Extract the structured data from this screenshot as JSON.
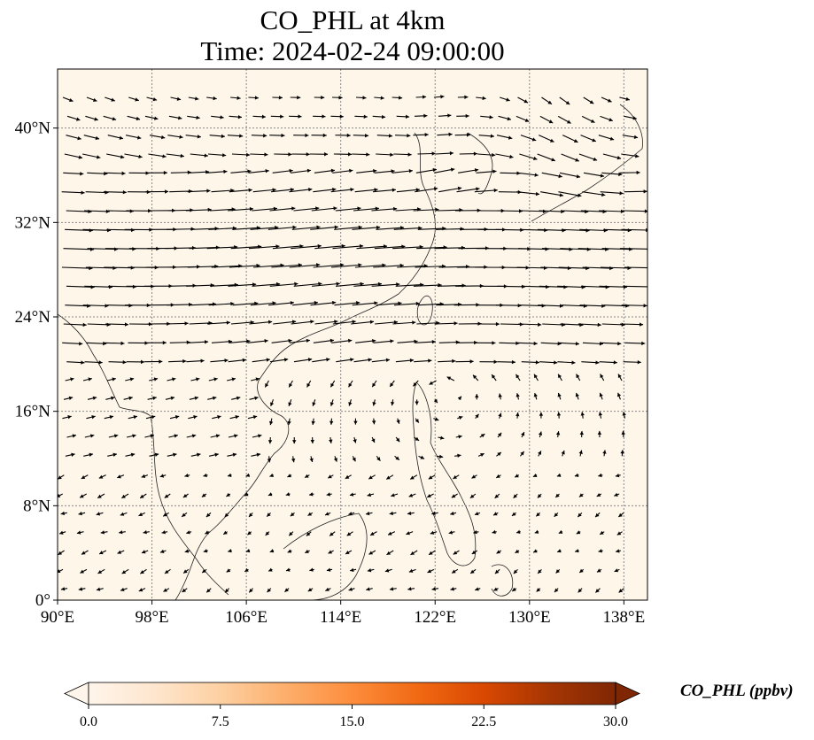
{
  "title": {
    "line1": "CO_PHL at 4km",
    "line2": "Time: 2024-02-24 09:00:00"
  },
  "map": {
    "lon_range": [
      90,
      140
    ],
    "lat_range": [
      0,
      45
    ],
    "lon_ticks": [
      {
        "value": 90,
        "label": "90°E"
      },
      {
        "value": 98,
        "label": "98°E"
      },
      {
        "value": 106,
        "label": "106°E"
      },
      {
        "value": 114,
        "label": "114°E"
      },
      {
        "value": 122,
        "label": "122°E"
      },
      {
        "value": 130,
        "label": "130°E"
      },
      {
        "value": 138,
        "label": "138°E"
      }
    ],
    "lat_ticks": [
      {
        "value": 0,
        "label": "0°"
      },
      {
        "value": 8,
        "label": "8°N"
      },
      {
        "value": 16,
        "label": "16°N"
      },
      {
        "value": 24,
        "label": "24°N"
      },
      {
        "value": 32,
        "label": "32°N"
      },
      {
        "value": 40,
        "label": "40°N"
      }
    ],
    "gridlines": true,
    "background_color": "#fff6ea",
    "field_color_low": "#fff5eb",
    "features": [
      "wind-vectors",
      "coastlines"
    ]
  },
  "colorbar": {
    "label": "CO_PHL (ppbv)",
    "min": 0.0,
    "max": 30.0,
    "extend": "both",
    "ticks": [
      {
        "value": 0,
        "label": "0.0"
      },
      {
        "value": 7.5,
        "label": "7.5"
      },
      {
        "value": 15,
        "label": "15.0"
      },
      {
        "value": 22.5,
        "label": "22.5"
      },
      {
        "value": 30,
        "label": "30.0"
      }
    ],
    "colormap": [
      "#fff5eb",
      "#fee6ce",
      "#fdd0a2",
      "#fdae6b",
      "#fd8d3c",
      "#f16913",
      "#d94801",
      "#a63603",
      "#7f2704"
    ]
  }
}
